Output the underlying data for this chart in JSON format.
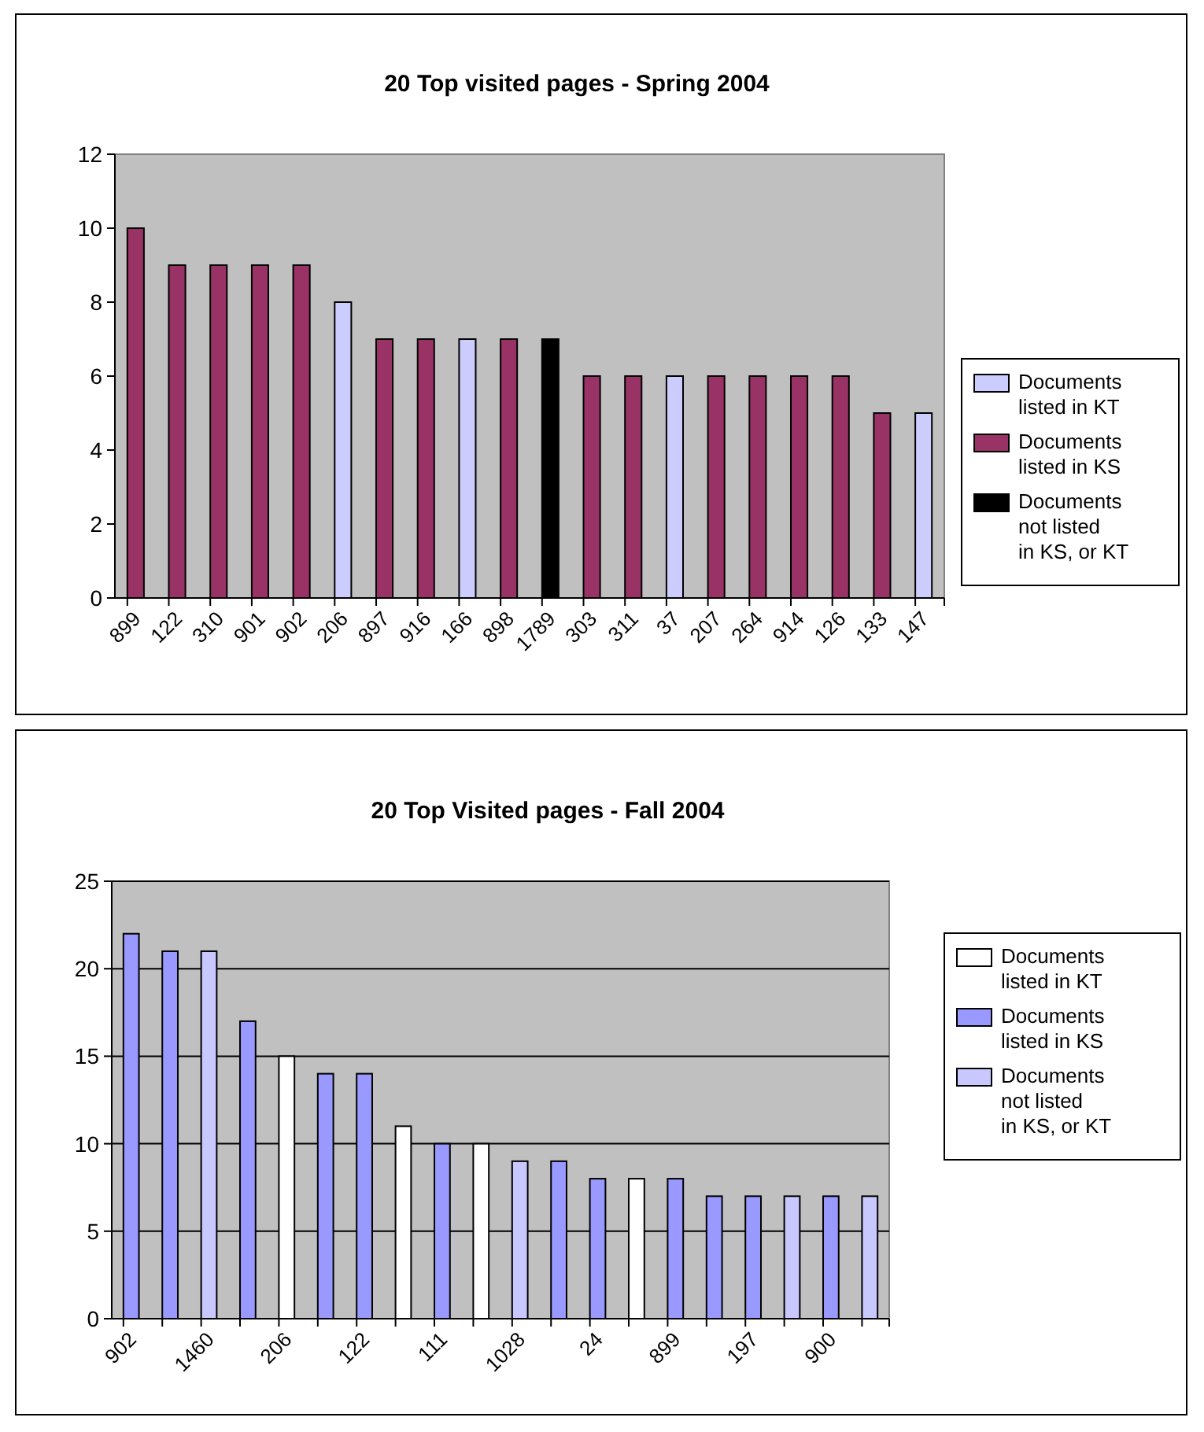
{
  "chart_data": [
    {
      "type": "bar",
      "title": "20 Top visited pages - Spring 2004",
      "stacked": true,
      "categories": [
        "899",
        "122",
        "310",
        "901",
        "902",
        "206",
        "897",
        "916",
        "166",
        "898",
        "1789",
        "303",
        "311",
        "37",
        "207",
        "264",
        "914",
        "126",
        "133",
        "147"
      ],
      "series": [
        {
          "name": "Documents listed in KT",
          "color": "#ccccff",
          "values": [
            null,
            null,
            null,
            null,
            null,
            8,
            null,
            null,
            7,
            null,
            null,
            null,
            null,
            6,
            null,
            null,
            null,
            null,
            null,
            5
          ]
        },
        {
          "name": "Documents listed in KS",
          "color": "#993366",
          "values": [
            10,
            9,
            9,
            9,
            9,
            null,
            7,
            7,
            null,
            7,
            null,
            6,
            6,
            null,
            6,
            6,
            6,
            6,
            5,
            null
          ]
        },
        {
          "name": "Documents not listed in KS, or KT",
          "color": "#000000",
          "values": [
            null,
            null,
            null,
            null,
            null,
            null,
            null,
            null,
            null,
            null,
            7,
            null,
            null,
            null,
            null,
            null,
            null,
            null,
            null,
            null
          ]
        }
      ],
      "ylim": [
        0,
        12
      ],
      "yticks": [
        0,
        2,
        4,
        6,
        8,
        10,
        12
      ],
      "grid": false,
      "legend": "right"
    },
    {
      "type": "bar",
      "title": "20 Top Visited pages - Fall 2004",
      "stacked": true,
      "categories": [
        "902",
        null,
        "1460",
        null,
        "206",
        null,
        "122",
        null,
        "111",
        null,
        "1028",
        null,
        "24",
        null,
        "899",
        null,
        "197",
        null,
        "900",
        null
      ],
      "series": [
        {
          "name": "Documents listed in KT",
          "color": "#ffffff",
          "values": [
            null,
            null,
            null,
            null,
            15,
            null,
            null,
            11,
            null,
            10,
            null,
            null,
            null,
            8,
            null,
            null,
            null,
            null,
            null,
            null
          ]
        },
        {
          "name": "Documents listed in KS",
          "color": "#9999ff",
          "values": [
            22,
            21,
            null,
            17,
            null,
            14,
            14,
            null,
            10,
            null,
            null,
            9,
            8,
            null,
            8,
            7,
            7,
            null,
            7,
            null
          ]
        },
        {
          "name": "Documents not listed in KS, or KT",
          "color": "#c8c8ff",
          "values": [
            null,
            null,
            21,
            null,
            null,
            null,
            null,
            null,
            null,
            null,
            9,
            null,
            null,
            null,
            null,
            null,
            null,
            7,
            null,
            7
          ]
        }
      ],
      "ylim": [
        0,
        25
      ],
      "yticks": [
        0,
        5,
        10,
        15,
        20,
        25
      ],
      "grid": "y",
      "legend": "right"
    }
  ]
}
